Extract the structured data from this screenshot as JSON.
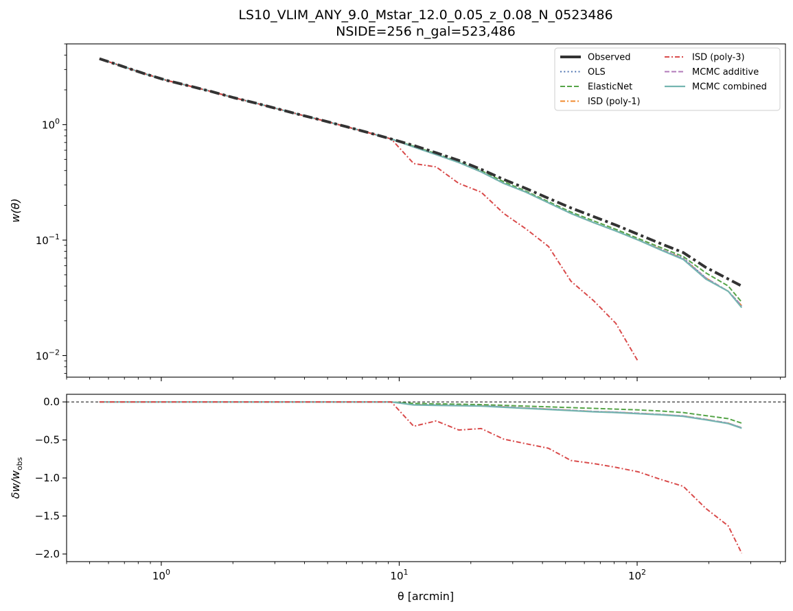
{
  "chart_data": {
    "type": "line",
    "title": "LS10_VLIM_ANY_9.0_Mstar_12.0_0.05_z_0.08_N_0523486",
    "subtitle": "NSIDE=256  n_gal=523,486",
    "xlabel": "θ [arcmin]",
    "x_scale": "log",
    "xlim": [
      0.4,
      420
    ],
    "x_ticks": [
      {
        "value": 1,
        "base": "10",
        "exp": "0"
      },
      {
        "value": 10,
        "base": "10",
        "exp": "1"
      },
      {
        "value": 100,
        "base": "10",
        "exp": "2"
      }
    ],
    "x": [
      0.55,
      0.68,
      0.84,
      1.05,
      1.3,
      1.63,
      2.02,
      2.51,
      3.12,
      3.88,
      4.82,
      5.99,
      7.45,
      9.26,
      11.5,
      14.3,
      17.8,
      22.1,
      27.5,
      34.1,
      42.4,
      52.7,
      65.5,
      81.4,
      101.2,
      125.8,
      156.3,
      194.3,
      241.5,
      275.0
    ],
    "panels": [
      {
        "name": "top",
        "ylabel": "w(θ)",
        "y_scale": "log",
        "ylim": [
          0.0065,
          5.0
        ],
        "y_ticks": [
          {
            "value": 1,
            "base": "10",
            "exp": "0"
          },
          {
            "value": 0.1,
            "base": "10",
            "exp": "−1"
          },
          {
            "value": 0.01,
            "base": "10",
            "exp": "−2"
          }
        ],
        "series": [
          {
            "name": "Observed",
            "color": "#333333",
            "style": "dashdot-thick",
            "values": [
              3.72,
              3.22,
              2.78,
              2.42,
              2.17,
              1.93,
              1.71,
              1.53,
              1.36,
              1.21,
              1.08,
              0.96,
              0.85,
              0.75,
              0.66,
              0.57,
              0.49,
              0.41,
              0.335,
              0.28,
              0.23,
              0.19,
              0.16,
              0.135,
              0.112,
              0.093,
              0.078,
              0.058,
              0.046,
              0.04
            ]
          },
          {
            "name": "OLS",
            "color": "#4c72b0",
            "style": "dotted",
            "values": [
              3.72,
              3.22,
              2.78,
              2.42,
              2.17,
              1.93,
              1.71,
              1.53,
              1.36,
              1.21,
              1.08,
              0.96,
              0.85,
              0.75,
              0.64,
              0.55,
              0.47,
              0.39,
              0.31,
              0.26,
              0.21,
              0.17,
              0.142,
              0.12,
              0.1,
              0.083,
              0.07,
              0.047,
              0.036,
              0.027
            ]
          },
          {
            "name": "ElasticNet",
            "color": "#55a447",
            "style": "dashed",
            "values": [
              3.72,
              3.22,
              2.78,
              2.42,
              2.17,
              1.93,
              1.71,
              1.53,
              1.36,
              1.21,
              1.08,
              0.96,
              0.85,
              0.75,
              0.65,
              0.56,
              0.48,
              0.4,
              0.32,
              0.265,
              0.215,
              0.175,
              0.147,
              0.124,
              0.103,
              0.086,
              0.072,
              0.052,
              0.04,
              0.029
            ]
          },
          {
            "name": "ISD (poly-1)",
            "color": "#f08a2c",
            "style": "dashdot",
            "values": [
              3.72,
              3.22,
              2.78,
              2.42,
              2.17,
              1.93,
              1.71,
              1.53,
              1.36,
              1.21,
              1.08,
              0.96,
              0.85,
              0.75,
              0.64,
              0.55,
              0.47,
              0.39,
              0.31,
              0.26,
              0.21,
              0.17,
              0.142,
              0.12,
              0.1,
              0.083,
              0.069,
              0.047,
              0.036,
              0.027
            ]
          },
          {
            "name": "ISD (poly-3)",
            "color": "#d94a4a",
            "style": "dashdot",
            "values": [
              3.72,
              3.22,
              2.78,
              2.42,
              2.17,
              1.93,
              1.71,
              1.53,
              1.36,
              1.21,
              1.08,
              0.96,
              0.85,
              0.75,
              0.46,
              0.43,
              0.31,
              0.26,
              0.17,
              0.125,
              0.088,
              0.044,
              0.03,
              0.019,
              0.0088,
              null,
              null,
              null,
              null,
              null
            ]
          },
          {
            "name": "MCMC additive",
            "color": "#b07ab8",
            "style": "dashed",
            "values": [
              3.72,
              3.22,
              2.78,
              2.42,
              2.17,
              1.93,
              1.71,
              1.53,
              1.36,
              1.21,
              1.08,
              0.96,
              0.85,
              0.75,
              0.64,
              0.55,
              0.47,
              0.39,
              0.31,
              0.26,
              0.21,
              0.17,
              0.142,
              0.12,
              0.1,
              0.083,
              0.069,
              0.047,
              0.036,
              0.027
            ]
          },
          {
            "name": "MCMC combined",
            "color": "#74b5b0",
            "style": "solid",
            "values": [
              3.72,
              3.22,
              2.78,
              2.42,
              2.17,
              1.93,
              1.71,
              1.53,
              1.36,
              1.21,
              1.08,
              0.96,
              0.85,
              0.75,
              0.64,
              0.55,
              0.47,
              0.39,
              0.31,
              0.26,
              0.21,
              0.17,
              0.142,
              0.12,
              0.1,
              0.082,
              0.068,
              0.046,
              0.036,
              0.026
            ]
          }
        ]
      },
      {
        "name": "bottom",
        "ylabel_main": "δw/w",
        "ylabel_sub": "obs",
        "y_scale": "linear",
        "ylim": [
          -2.1,
          0.1
        ],
        "reference_line": 0.0,
        "y_ticks": [
          "0.0",
          "−0.5",
          "−1.0",
          "−1.5",
          "−2.0"
        ],
        "y_tick_values": [
          0.0,
          -0.5,
          -1.0,
          -1.5,
          -2.0
        ],
        "series": [
          {
            "name": "OLS",
            "color": "#4c72b0",
            "style": "dotted",
            "values": [
              0,
              0,
              0,
              0,
              0,
              0,
              0,
              0,
              0,
              0,
              0,
              0,
              0,
              0,
              -0.035,
              -0.04,
              -0.045,
              -0.05,
              -0.065,
              -0.08,
              -0.095,
              -0.11,
              -0.125,
              -0.135,
              -0.15,
              -0.165,
              -0.185,
              -0.23,
              -0.28,
              -0.34
            ]
          },
          {
            "name": "ElasticNet",
            "color": "#55a447",
            "style": "dashed",
            "values": [
              0,
              0,
              0,
              0,
              0,
              0,
              0,
              0,
              0,
              0,
              0,
              0,
              0,
              0,
              -0.02,
              -0.025,
              -0.03,
              -0.035,
              -0.045,
              -0.055,
              -0.065,
              -0.075,
              -0.085,
              -0.095,
              -0.105,
              -0.12,
              -0.14,
              -0.18,
              -0.22,
              -0.28
            ]
          },
          {
            "name": "ISD (poly-1)",
            "color": "#f08a2c",
            "style": "dashdot",
            "values": [
              0,
              0,
              0,
              0,
              0,
              0,
              0,
              0,
              0,
              0,
              0,
              0,
              0,
              0,
              -0.035,
              -0.04,
              -0.045,
              -0.05,
              -0.065,
              -0.08,
              -0.095,
              -0.11,
              -0.125,
              -0.135,
              -0.15,
              -0.165,
              -0.185,
              -0.23,
              -0.28,
              -0.34
            ]
          },
          {
            "name": "ISD (poly-3)",
            "color": "#d94a4a",
            "style": "dashdot",
            "values": [
              0,
              0,
              0,
              0,
              0,
              0,
              0,
              0,
              0,
              0,
              0,
              0,
              0,
              0,
              -0.32,
              -0.25,
              -0.37,
              -0.35,
              -0.49,
              -0.55,
              -0.61,
              -0.77,
              -0.81,
              -0.86,
              -0.92,
              -1.02,
              -1.11,
              -1.4,
              -1.63,
              -1.99
            ]
          },
          {
            "name": "MCMC additive",
            "color": "#b07ab8",
            "style": "dashed",
            "values": [
              0,
              0,
              0,
              0,
              0,
              0,
              0,
              0,
              0,
              0,
              0,
              0,
              0,
              0,
              -0.035,
              -0.04,
              -0.045,
              -0.05,
              -0.065,
              -0.08,
              -0.095,
              -0.11,
              -0.125,
              -0.135,
              -0.15,
              -0.165,
              -0.185,
              -0.23,
              -0.28,
              -0.34
            ]
          },
          {
            "name": "MCMC combined",
            "color": "#74b5b0",
            "style": "solid",
            "values": [
              0,
              0,
              0,
              0,
              0,
              0,
              0,
              0,
              0,
              0,
              0,
              0,
              0,
              0,
              -0.04,
              -0.045,
              -0.05,
              -0.055,
              -0.07,
              -0.085,
              -0.1,
              -0.115,
              -0.13,
              -0.14,
              -0.155,
              -0.17,
              -0.19,
              -0.235,
              -0.285,
              -0.345
            ]
          }
        ]
      }
    ],
    "legend": {
      "placement": "top-right",
      "columns": 2,
      "entries": [
        "Observed",
        "OLS",
        "ElasticNet",
        "ISD (poly-1)",
        "ISD (poly-3)",
        "MCMC additive",
        "MCMC combined"
      ]
    },
    "grid": false
  }
}
